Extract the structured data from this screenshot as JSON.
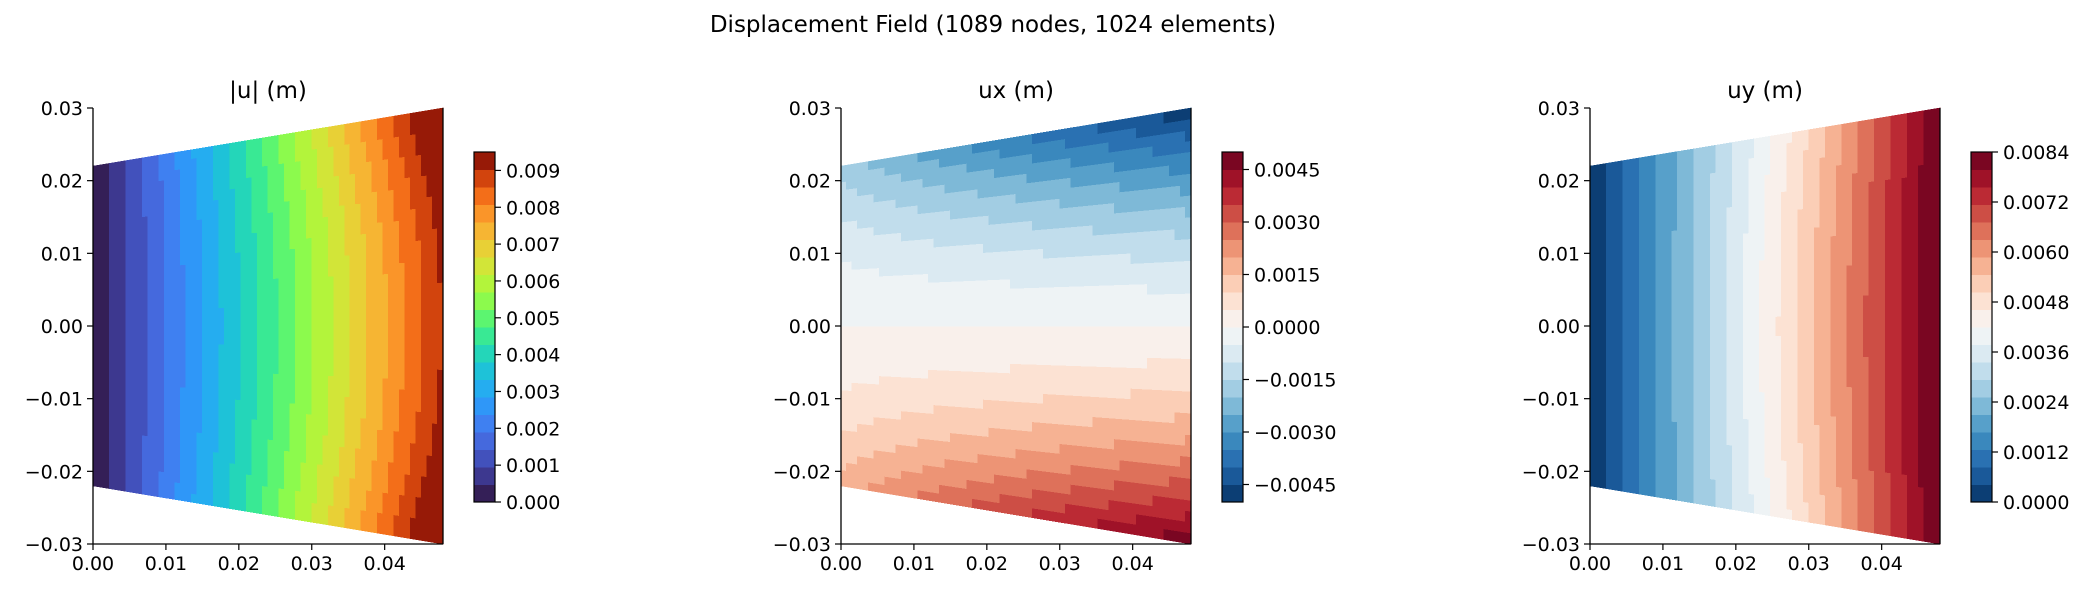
{
  "figure": {
    "title": "Displacement Field (1089 nodes, 1024 elements)"
  },
  "chart_data": [
    {
      "type": "contour",
      "title": "|u| (m)",
      "xlabel": "",
      "ylabel": "",
      "xlim": [
        0.0,
        0.048
      ],
      "ylim": [
        -0.03,
        0.03
      ],
      "x_ticks": [
        "0.00",
        "0.01",
        "0.02",
        "0.03",
        "0.04"
      ],
      "y_ticks": [
        "−0.03",
        "−0.02",
        "−0.01",
        "0.00",
        "0.01",
        "0.02",
        "0.03"
      ],
      "domain": {
        "x_range": [
          0.0,
          0.048
        ],
        "half_height_at_x0": 0.022,
        "half_height_at_xmax": 0.03
      },
      "field": "magnitude",
      "colormap": "turbo",
      "levels": 20,
      "clim": [
        0.0,
        0.0095
      ],
      "colorbar_ticks": [
        "0.000",
        "0.001",
        "0.002",
        "0.003",
        "0.004",
        "0.005",
        "0.006",
        "0.007",
        "0.008",
        "0.009"
      ],
      "colorbar_tick_values": [
        0.0,
        0.001,
        0.002,
        0.003,
        0.004,
        0.005,
        0.006,
        0.007,
        0.008,
        0.009
      ]
    },
    {
      "type": "contour",
      "title": "ux (m)",
      "xlabel": "",
      "ylabel": "",
      "xlim": [
        0.0,
        0.048
      ],
      "ylim": [
        -0.03,
        0.03
      ],
      "x_ticks": [
        "0.00",
        "0.01",
        "0.02",
        "0.03",
        "0.04"
      ],
      "y_ticks": [
        "−0.03",
        "−0.02",
        "−0.01",
        "0.00",
        "0.01",
        "0.02",
        "0.03"
      ],
      "domain": {
        "x_range": [
          0.0,
          0.048
        ],
        "half_height_at_x0": 0.022,
        "half_height_at_xmax": 0.03
      },
      "field": "ux",
      "colormap": "RdBu_r",
      "levels": 20,
      "clim": [
        -0.005,
        0.005
      ],
      "colorbar_ticks": [
        "−0.0045",
        "−0.0030",
        "−0.0015",
        "0.0000",
        "0.0015",
        "0.0030",
        "0.0045"
      ],
      "colorbar_tick_values": [
        -0.0045,
        -0.003,
        -0.0015,
        0.0,
        0.0015,
        0.003,
        0.0045
      ]
    },
    {
      "type": "contour",
      "title": "uy (m)",
      "xlabel": "",
      "ylabel": "",
      "xlim": [
        0.0,
        0.048
      ],
      "ylim": [
        -0.03,
        0.03
      ],
      "x_ticks": [
        "0.00",
        "0.01",
        "0.02",
        "0.03",
        "0.04"
      ],
      "y_ticks": [
        "−0.03",
        "−0.02",
        "−0.01",
        "0.00",
        "0.01",
        "0.02",
        "0.03"
      ],
      "domain": {
        "x_range": [
          0.0,
          0.048
        ],
        "half_height_at_x0": 0.022,
        "half_height_at_xmax": 0.03
      },
      "field": "uy",
      "colormap": "RdBu_r",
      "levels": 20,
      "clim": [
        0.0,
        0.0084
      ],
      "colorbar_ticks": [
        "0.0000",
        "0.0012",
        "0.0024",
        "0.0036",
        "0.0048",
        "0.0060",
        "0.0072",
        "0.0084"
      ],
      "colorbar_tick_values": [
        0.0,
        0.0012,
        0.0024,
        0.0036,
        0.0048,
        0.006,
        0.0072,
        0.0084
      ]
    }
  ]
}
